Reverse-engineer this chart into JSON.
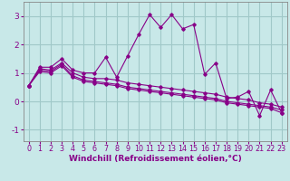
{
  "xlabel": "Windchill (Refroidissement éolien,°C)",
  "bg_color": "#c8e8e8",
  "grid_color": "#a0c8c8",
  "line_color": "#880088",
  "xlim": [
    -0.5,
    23.5
  ],
  "ylim": [
    -1.4,
    3.5
  ],
  "yticks": [
    -1,
    0,
    1,
    2,
    3
  ],
  "xticks": [
    0,
    1,
    2,
    3,
    4,
    5,
    6,
    7,
    8,
    9,
    10,
    11,
    12,
    13,
    14,
    15,
    16,
    17,
    18,
    19,
    20,
    21,
    22,
    23
  ],
  "lines": [
    [
      0.55,
      1.2,
      1.2,
      1.5,
      1.1,
      1.0,
      1.0,
      1.55,
      0.85,
      1.6,
      2.35,
      3.05,
      2.6,
      3.05,
      2.55,
      2.7,
      0.95,
      1.35,
      0.1,
      0.15,
      0.35,
      -0.5,
      0.4,
      -0.4
    ],
    [
      0.55,
      1.15,
      1.1,
      1.35,
      1.0,
      0.85,
      0.8,
      0.8,
      0.75,
      0.65,
      0.6,
      0.55,
      0.5,
      0.45,
      0.4,
      0.35,
      0.3,
      0.25,
      0.15,
      0.1,
      0.05,
      -0.05,
      -0.1,
      -0.2
    ],
    [
      0.55,
      1.1,
      1.05,
      1.3,
      0.9,
      0.75,
      0.7,
      0.65,
      0.6,
      0.5,
      0.45,
      0.4,
      0.35,
      0.3,
      0.25,
      0.2,
      0.15,
      0.1,
      0.0,
      -0.05,
      -0.1,
      -0.15,
      -0.2,
      -0.3
    ],
    [
      0.55,
      1.05,
      1.0,
      1.25,
      0.85,
      0.7,
      0.65,
      0.6,
      0.55,
      0.45,
      0.4,
      0.35,
      0.3,
      0.25,
      0.2,
      0.15,
      0.1,
      0.05,
      -0.05,
      -0.1,
      -0.15,
      -0.2,
      -0.25,
      -0.4
    ]
  ],
  "xlabel_fontsize": 6.5,
  "tick_fontsize": 6.5,
  "xtick_fontsize": 5.8
}
